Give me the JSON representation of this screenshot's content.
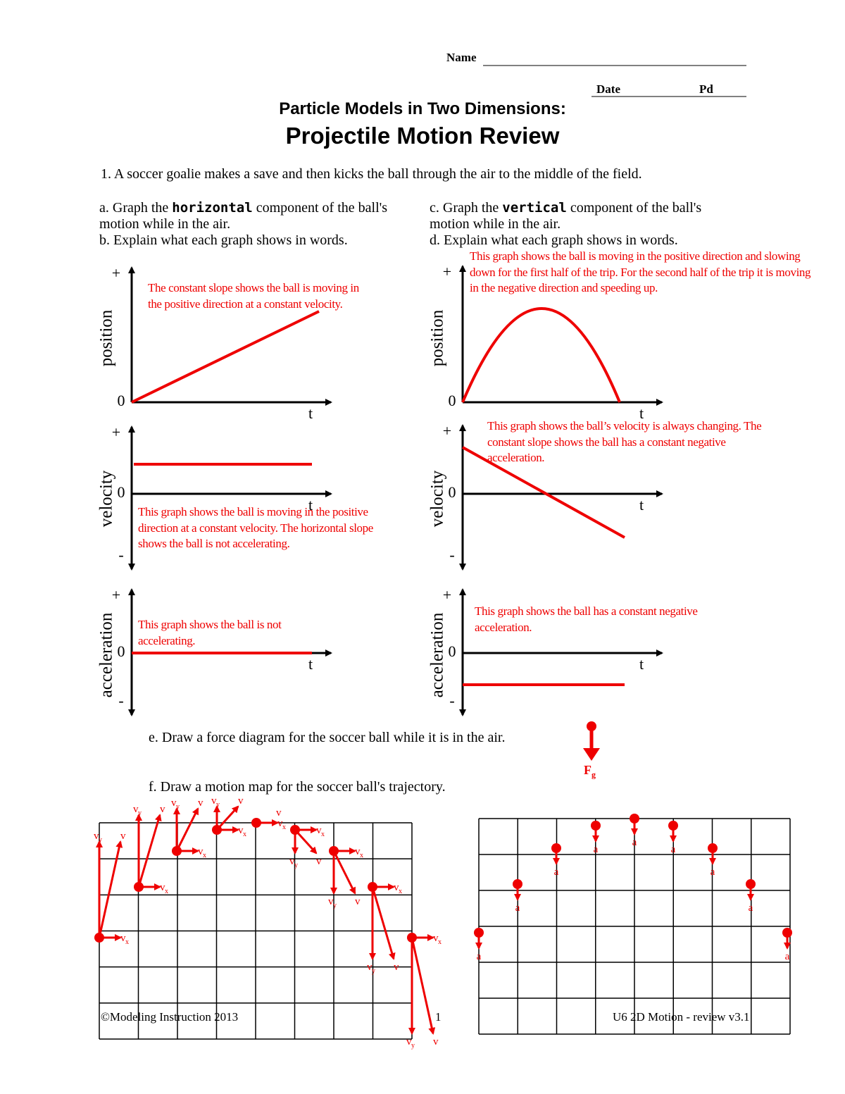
{
  "header": {
    "name_label": "Name",
    "date_label": "Date",
    "pd_label": "Pd",
    "title": "Particle Models in Two Dimensions:",
    "subtitle": "Projectile Motion Review"
  },
  "question": "1. A soccer goalie makes a save and then kicks the ball through the air to the middle of the field.",
  "left_prompt": {
    "a_pre": "a. Graph the ",
    "a_bold": "horizontal",
    "a_post": " component of the ball's motion while in the air.",
    "b": "b. Explain what each graph shows in words."
  },
  "right_prompt": {
    "c_pre": "c. Graph the ",
    "c_bold": "vertical",
    "c_post": " component of the ball's motion while in the air.",
    "d": "d. Explain what each graph shows in words."
  },
  "axis_marks": {
    "plus": "+",
    "zero": "0",
    "minus": "-",
    "t": "t"
  },
  "graphs": [
    {
      "axis_label": "position",
      "answer": "The constant slope shows the ball is moving in the positive direction at a constant velocity."
    },
    {
      "axis_label": "velocity",
      "answer": "This graph shows the ball is moving in the positive direction at a constant velocity. The horizontal slope shows the ball is not accelerating."
    },
    {
      "axis_label": "acceleration",
      "answer": "This graph shows the ball is not accelerating."
    },
    {
      "axis_label": "position",
      "answer": "This graph shows the ball is moving in the positive direction and slowing down for the first half of the trip. For the second half of the trip it is moving in the negative direction and speeding up."
    },
    {
      "axis_label": "velocity",
      "answer": "This graph shows the ball’s velocity is always changing.  The constant slope shows the ball has a constant negative acceleration."
    },
    {
      "axis_label": "acceleration",
      "answer": "This graph shows the ball has a constant negative acceleration."
    }
  ],
  "force": {
    "prompt": "e. Draw a force diagram for the soccer ball while it is in the air.",
    "label": "F",
    "label_sub": "g"
  },
  "motion_map": {
    "prompt": "f. Draw a motion map for the soccer ball's trajectory.",
    "v": "v",
    "x": "x",
    "y": "y",
    "a": "a"
  },
  "footer": {
    "left": "©Modeling Instruction 2013",
    "page": "1",
    "right": "U6 2D Motion - review v3.1"
  }
}
